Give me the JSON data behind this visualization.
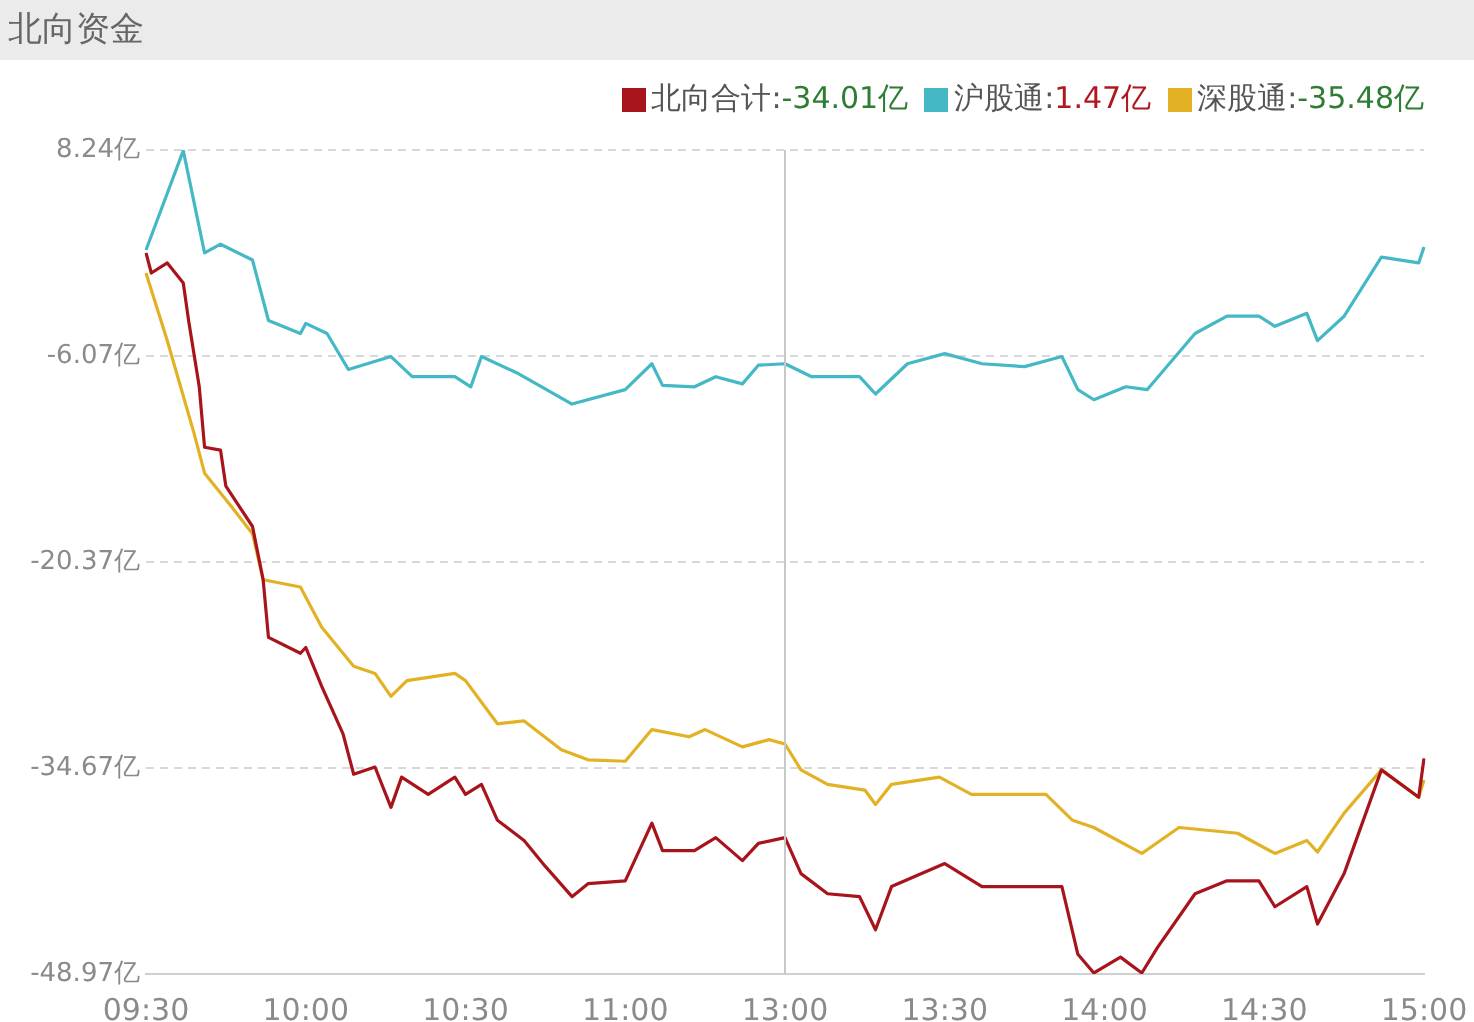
{
  "chart_data": {
    "type": "line",
    "title": "北向资金",
    "categories": [
      "09:30",
      null,
      null,
      null,
      null,
      null,
      null,
      null,
      null,
      null,
      null,
      null,
      null,
      null,
      null,
      null,
      null,
      null,
      null,
      null,
      null,
      null,
      null,
      null,
      null,
      null,
      null,
      null,
      null,
      null,
      "10:00",
      null,
      null,
      null,
      null,
      null,
      null,
      null,
      null,
      null,
      null,
      null,
      null,
      null,
      null,
      null,
      null,
      null,
      null,
      null,
      null,
      null,
      null,
      null,
      null,
      null,
      null,
      null,
      null,
      null,
      "10:30",
      null,
      null,
      null,
      null,
      null,
      null,
      null,
      null,
      null,
      null,
      null,
      null,
      null,
      null,
      null,
      null,
      null,
      null,
      null,
      null,
      null,
      null,
      null,
      null,
      null,
      null,
      null,
      null,
      null,
      "11:00",
      null,
      null,
      null,
      null,
      null,
      null,
      null,
      null,
      null,
      null,
      null,
      null,
      null,
      null,
      null,
      null,
      null,
      null,
      null,
      null,
      null,
      null,
      null,
      null,
      null,
      null,
      null,
      null,
      null,
      "13:00",
      null,
      null,
      null,
      null,
      null,
      null,
      null,
      null,
      null,
      null,
      null,
      null,
      null,
      null,
      null,
      null,
      null,
      null,
      null,
      null,
      null,
      null,
      null,
      null,
      null,
      null,
      null,
      null,
      null,
      "13:30",
      null,
      null,
      null,
      null,
      null,
      null,
      null,
      null,
      null,
      null,
      null,
      null,
      null,
      null,
      null,
      null,
      null,
      null,
      null,
      null,
      null,
      null,
      null,
      null,
      null,
      null,
      null,
      null,
      null,
      "14:00",
      null,
      null,
      null,
      null,
      null,
      null,
      null,
      null,
      null,
      null,
      null,
      null,
      null,
      null,
      null,
      null,
      null,
      null,
      null,
      null,
      null,
      null,
      null,
      null,
      null,
      null,
      null,
      null,
      null,
      "14:30",
      null,
      null,
      null,
      null,
      null,
      null,
      null,
      null,
      null,
      null,
      null,
      null,
      null,
      null,
      null,
      null,
      null,
      null,
      null,
      null,
      null,
      null,
      null,
      null,
      null,
      null,
      null,
      null,
      null,
      "15:00"
    ],
    "ylim": [
      -48.97,
      8.24
    ],
    "yticks": [
      {
        "value": -48.97,
        "label": "-48.97亿"
      },
      {
        "value": -34.67,
        "label": "-34.67亿"
      },
      {
        "value": -20.37,
        "label": "-20.37亿"
      },
      {
        "value": -6.07,
        "label": "-6.07亿"
      },
      {
        "value": 8.24,
        "label": "8.24亿"
      }
    ],
    "grid": "y",
    "legend": "top right",
    "ref_lines": [
      {
        "axis": "x",
        "value": "13:00",
        "color": "#c8c8c8"
      }
    ],
    "annotations": [
      "-34.01亿",
      "1.47亿",
      "-35.48亿"
    ],
    "series": [
      {
        "name": "北向合计:",
        "color": "#a8141c",
        "values": [
          1.1,
          -0.3,
          null,
          null,
          0.4,
          null,
          null,
          -1.0,
          -3.6,
          null,
          -8.2,
          -12.4,
          null,
          null,
          -12.6,
          -15.1,
          null,
          null,
          null,
          null,
          -17.9,
          null,
          -21.6,
          -25.6,
          null,
          null,
          null,
          null,
          null,
          -26.7,
          -26.3,
          null,
          null,
          -29.0,
          null,
          null,
          null,
          -32.3,
          null,
          -35.1,
          null,
          null,
          null,
          -34.6,
          null,
          null,
          -37.4,
          null,
          -35.3,
          null,
          null,
          null,
          null,
          -36.5,
          null,
          null,
          null,
          null,
          -35.3,
          null,
          -36.5,
          null,
          null,
          -35.8,
          null,
          null,
          -38.3,
          null,
          null,
          null,
          null,
          -39.7,
          null,
          null,
          null,
          -41.5,
          null,
          null,
          null,
          null,
          -43.6,
          null,
          null,
          -42.7,
          null,
          null,
          null,
          null,
          null,
          null,
          -42.5,
          null,
          null,
          null,
          null,
          -38.5,
          null,
          -40.4,
          null,
          null,
          null,
          null,
          null,
          -40.4,
          null,
          null,
          null,
          -39.5,
          null,
          null,
          null,
          null,
          -41.1,
          null,
          null,
          -39.9,
          null,
          null,
          null,
          null,
          -39.5,
          null,
          null,
          -42.0,
          null,
          null,
          null,
          null,
          -43.4,
          null,
          null,
          null,
          null,
          null,
          -43.6,
          null,
          null,
          -45.9,
          null,
          null,
          -42.9,
          null,
          null,
          null,
          null,
          null,
          null,
          null,
          null,
          null,
          -41.3,
          null,
          null,
          null,
          null,
          null,
          null,
          -42.9,
          null,
          null,
          null,
          null,
          null,
          null,
          null,
          -42.9,
          null,
          null,
          null,
          null,
          null,
          null,
          -42.9,
          null,
          null,
          -47.6,
          null,
          null,
          -48.9,
          null,
          null,
          null,
          null,
          -47.8,
          null,
          null,
          null,
          -48.9,
          null,
          null,
          -47.1,
          null,
          null,
          null,
          null,
          null,
          null,
          -43.4,
          null,
          null,
          null,
          null,
          null,
          -42.5,
          null,
          null,
          null,
          null,
          null,
          -42.5,
          null,
          null,
          -44.3,
          null,
          null,
          null,
          null,
          null,
          -42.9,
          null,
          -45.5,
          null,
          null,
          null,
          null,
          -42.0,
          null,
          null,
          null,
          null,
          null,
          null,
          -34.8,
          null,
          null,
          null,
          null,
          null,
          null,
          -36.7,
          -34.0
        ]
      },
      {
        "name": "沪股通:",
        "color": "#45b8c6",
        "values": [
          1.3,
          null,
          null,
          null,
          null,
          null,
          null,
          8.2,
          null,
          null,
          null,
          1.1,
          null,
          null,
          1.7,
          null,
          null,
          null,
          null,
          null,
          0.6,
          null,
          null,
          -3.6,
          null,
          null,
          null,
          null,
          null,
          -4.5,
          -3.8,
          null,
          null,
          null,
          -4.5,
          null,
          null,
          null,
          -7.0,
          null,
          null,
          null,
          null,
          null,
          null,
          null,
          -6.1,
          null,
          null,
          null,
          -7.5,
          null,
          null,
          null,
          null,
          null,
          null,
          null,
          -7.5,
          null,
          null,
          -8.2,
          null,
          -6.1,
          null,
          null,
          null,
          null,
          null,
          null,
          -7.3,
          null,
          null,
          null,
          null,
          null,
          null,
          null,
          null,
          null,
          -9.4,
          null,
          null,
          null,
          null,
          null,
          null,
          null,
          null,
          null,
          -8.4,
          null,
          null,
          null,
          null,
          -6.6,
          null,
          -8.1,
          null,
          null,
          null,
          null,
          null,
          -8.2,
          null,
          null,
          null,
          -7.5,
          null,
          null,
          null,
          null,
          -8.0,
          null,
          null,
          -6.7,
          null,
          null,
          null,
          null,
          -6.6,
          null,
          null,
          null,
          null,
          -7.5,
          null,
          null,
          null,
          null,
          null,
          null,
          null,
          null,
          -7.5,
          null,
          null,
          -8.7,
          null,
          null,
          null,
          null,
          null,
          -6.6,
          null,
          null,
          null,
          null,
          null,
          null,
          -5.9,
          null,
          null,
          null,
          null,
          null,
          null,
          -6.6,
          null,
          null,
          null,
          null,
          null,
          null,
          null,
          -6.8,
          null,
          null,
          null,
          null,
          null,
          null,
          -6.1,
          null,
          null,
          -8.4,
          null,
          null,
          -9.1,
          null,
          null,
          null,
          null,
          null,
          -8.2,
          null,
          null,
          null,
          -8.4,
          null,
          null,
          null,
          null,
          null,
          null,
          null,
          null,
          -4.5,
          null,
          null,
          null,
          null,
          null,
          -3.3,
          null,
          null,
          null,
          null,
          null,
          -3.3,
          null,
          null,
          -4.0,
          null,
          null,
          null,
          null,
          null,
          -3.1,
          null,
          -5.0,
          null,
          null,
          null,
          null,
          -3.3,
          null,
          null,
          null,
          null,
          null,
          null,
          0.8,
          null,
          null,
          null,
          null,
          null,
          null,
          0.4,
          1.5
        ]
      },
      {
        "name": "深股通:",
        "color": "#e3b224",
        "values": [
          -0.3,
          null,
          null,
          null,
          -5.0,
          null,
          null,
          null,
          null,
          -11.4,
          null,
          -14.2,
          null,
          null,
          null,
          null,
          -16.5,
          null,
          null,
          null,
          -18.4,
          null,
          -21.6,
          null,
          null,
          null,
          null,
          null,
          null,
          -22.1,
          null,
          null,
          null,
          -24.9,
          null,
          null,
          null,
          null,
          null,
          -27.6,
          null,
          null,
          null,
          -28.1,
          null,
          null,
          -29.7,
          null,
          null,
          -28.6,
          null,
          null,
          null,
          null,
          null,
          null,
          null,
          null,
          -28.1,
          null,
          -28.6,
          null,
          null,
          null,
          null,
          null,
          -31.6,
          null,
          null,
          null,
          null,
          -31.4,
          null,
          null,
          null,
          null,
          null,
          null,
          -33.4,
          null,
          null,
          null,
          null,
          -34.1,
          null,
          null,
          null,
          null,
          null,
          null,
          -34.2,
          null,
          null,
          null,
          null,
          -32.0,
          null,
          null,
          null,
          null,
          null,
          null,
          -32.5,
          null,
          null,
          -32.0,
          null,
          null,
          null,
          null,
          null,
          null,
          -33.2,
          null,
          null,
          null,
          null,
          -32.7,
          null,
          null,
          -33.0,
          null,
          null,
          -34.8,
          null,
          null,
          null,
          null,
          -35.8,
          null,
          null,
          null,
          null,
          null,
          null,
          -36.2,
          null,
          -37.2,
          null,
          null,
          -35.8,
          null,
          null,
          null,
          null,
          null,
          null,
          null,
          null,
          -35.3,
          null,
          null,
          null,
          null,
          null,
          -36.5,
          null,
          null,
          null,
          null,
          null,
          null,
          null,
          null,
          null,
          null,
          null,
          null,
          null,
          -36.5,
          null,
          null,
          null,
          null,
          -38.3,
          null,
          null,
          null,
          -38.8,
          null,
          null,
          null,
          null,
          null,
          null,
          null,
          null,
          -40.6,
          null,
          null,
          null,
          null,
          null,
          null,
          -38.8,
          null,
          null,
          null,
          null,
          null,
          null,
          null,
          null,
          null,
          null,
          -39.2,
          null,
          null,
          null,
          null,
          null,
          null,
          -40.6,
          null,
          null,
          null,
          null,
          null,
          -39.7,
          null,
          -40.5,
          null,
          null,
          null,
          null,
          -37.8,
          null,
          null,
          null,
          null,
          null,
          null,
          -34.8,
          null,
          null,
          null,
          null,
          null,
          null,
          -36.7,
          -35.5
        ]
      }
    ]
  }
}
